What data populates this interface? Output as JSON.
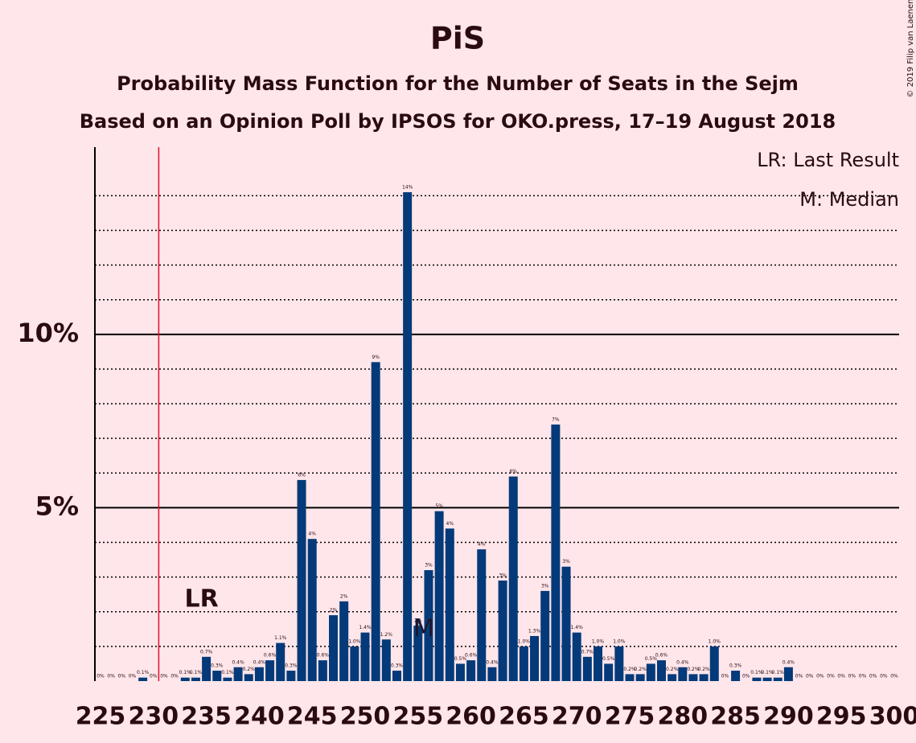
{
  "chart_data": {
    "type": "bar",
    "title": "PiS",
    "subtitle": "Probability Mass Function for the Number of Seats in the Sejm",
    "subtitle2": "Based on an Opinion Poll by IPSOS for OKO.press, 17–19 August 2018",
    "copyright": "© 2019 Filip van Laenen",
    "legend": [
      "LR: Last Result",
      "M: Median"
    ],
    "legend_corner": "top-right",
    "color": "#043a79",
    "x": [
      225,
      226,
      227,
      228,
      229,
      230,
      231,
      232,
      233,
      234,
      235,
      236,
      237,
      238,
      239,
      240,
      241,
      242,
      243,
      244,
      245,
      246,
      247,
      248,
      249,
      250,
      251,
      252,
      253,
      254,
      255,
      256,
      257,
      258,
      259,
      260,
      261,
      262,
      263,
      264,
      265,
      266,
      267,
      268,
      269,
      270,
      271,
      272,
      273,
      274,
      275,
      276,
      277,
      278,
      279,
      280,
      281,
      282,
      283,
      284,
      285,
      286,
      287,
      288,
      289,
      290,
      291,
      292,
      293,
      294,
      295,
      296,
      297,
      298,
      299,
      300
    ],
    "values": [
      0,
      0,
      0,
      0,
      0.1,
      0,
      0,
      0,
      0.1,
      0.1,
      0.7,
      0.3,
      0.1,
      0.4,
      0.2,
      0.4,
      0.6,
      1.1,
      0.3,
      5.8,
      4.1,
      0.6,
      1.9,
      2.3,
      1.0,
      1.4,
      9.2,
      1.2,
      0.3,
      14.1,
      1.6,
      3.2,
      4.9,
      4.4,
      0.5,
      0.6,
      3.8,
      0.4,
      2.9,
      5.9,
      1.0,
      1.3,
      2.6,
      7.4,
      3.3,
      1.4,
      0.7,
      1.0,
      0.5,
      1.0,
      0.2,
      0.2,
      0.5,
      0.6,
      0.2,
      0.4,
      0.2,
      0.2,
      1.0,
      0,
      0.3,
      0,
      0.1,
      0.1,
      0.1,
      0.4,
      0,
      0,
      0,
      0,
      0,
      0,
      0,
      0,
      0,
      0
    ],
    "value_labels": [
      "0%",
      "0%",
      "0%",
      "0%",
      "0.1%",
      "0%",
      "0%",
      "0%",
      "0.1%",
      "0.1%",
      "0.7%",
      "0.3%",
      "0.1%",
      "0.4%",
      "0.2%",
      "0.4%",
      "0.6%",
      "1.1%",
      "0.3%",
      "6%",
      "4%",
      "0.6%",
      "2%",
      "2%",
      "1.0%",
      "1.4%",
      "9%",
      "1.2%",
      "0.3%",
      "14%",
      "2%",
      "3%",
      "5%",
      "4%",
      "0.5%",
      "0.6%",
      "4%",
      "0.4%",
      "3%",
      "6%",
      "1.0%",
      "1.3%",
      "3%",
      "7%",
      "3%",
      "1.4%",
      "0.7%",
      "1.0%",
      "0.5%",
      "1.0%",
      "0.2%",
      "0.2%",
      "0.5%",
      "0.6%",
      "0.2%",
      "0.4%",
      "0.2%",
      "0.2%",
      "1.0%",
      "0%",
      "0.3%",
      "0%",
      "0.1%",
      "0.1%",
      "0.1%",
      "0.4%",
      "0%",
      "0%",
      "0%",
      "0%",
      "0%",
      "0%",
      "0%",
      "0%",
      "0%",
      "0%"
    ],
    "last_result": 235,
    "last_result_label": "LR",
    "median": 256,
    "median_label": "M",
    "majority": 231,
    "xlim": [
      225,
      300
    ],
    "xticks": [
      225,
      230,
      235,
      240,
      245,
      250,
      255,
      260,
      265,
      270,
      275,
      280,
      285,
      290,
      295,
      300
    ],
    "ylim": [
      0,
      15.4
    ],
    "yticks": [
      {
        "value": 5,
        "label": "5%"
      },
      {
        "value": 10,
        "label": "10%"
      }
    ],
    "minor_yticks": [
      1,
      2,
      3,
      4,
      6,
      7,
      8,
      9,
      11,
      12,
      13,
      14
    ],
    "grid": true
  }
}
